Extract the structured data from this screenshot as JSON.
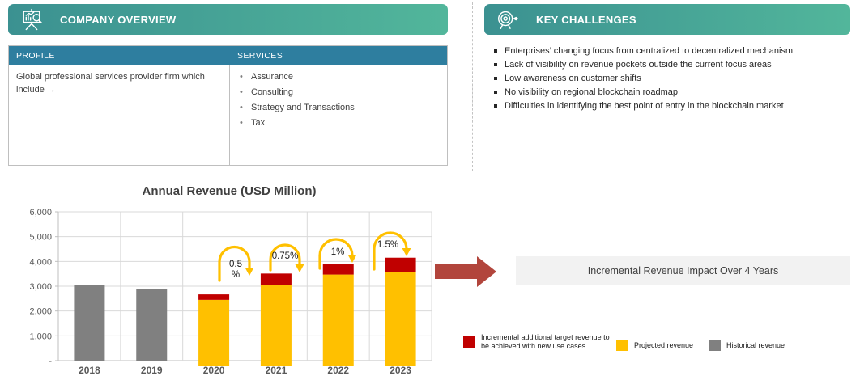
{
  "company_overview": {
    "title": "COMPANY OVERVIEW",
    "table": {
      "headers": [
        "PROFILE",
        "SERVICES"
      ],
      "profile_text": "Global professional services provider firm which include →",
      "services": [
        "Assurance",
        "Consulting",
        "Strategy and Transactions",
        "Tax"
      ]
    }
  },
  "key_challenges": {
    "title": "KEY CHALLENGES",
    "items": [
      "Enterprises’ changing focus from centralized to decentralized mechanism",
      "Lack of visibility on revenue pockets outside the current focus areas",
      "Low awareness on customer shifts",
      "No visibility on regional blockchain roadmap",
      "Difficulties in identifying the best point of entry in the blockchain market"
    ]
  },
  "chart_data": {
    "type": "bar",
    "stacked": true,
    "title": "Annual Revenue (USD Million)",
    "categories": [
      "2018",
      "2019",
      "2020",
      "2021",
      "2022",
      "2023"
    ],
    "series": [
      {
        "name": "Historical revenue",
        "color": "#808080",
        "values": [
          3050,
          2870,
          null,
          null,
          null,
          null
        ]
      },
      {
        "name": "Projected revenue",
        "color": "#FFC000",
        "values": [
          null,
          null,
          2450,
          3060,
          3470,
          3580
        ]
      },
      {
        "name": "Incremental additional target revenue to be achieved with new use cases",
        "color": "#C00000",
        "values": [
          null,
          null,
          220,
          450,
          410,
          570
        ]
      }
    ],
    "growth_labels": [
      "0.5%",
      "0.75%",
      "1%",
      "1.5%"
    ],
    "y_ticks": [
      "6,000",
      "5,000",
      "4,000",
      "3,000",
      "2,000",
      "1,000",
      "-"
    ],
    "ylim": [
      0,
      6000
    ],
    "xlabel": "",
    "ylabel": "",
    "grid": true,
    "legend_position": "bottom-right"
  },
  "impact": {
    "label": "Incremental Revenue Impact Over 4 Years"
  },
  "colors": {
    "banner-teal-1": "#3B9191",
    "banner-teal-2": "#52B69B",
    "table-header-blue": "#2E7E9F",
    "historical-gray": "#808080",
    "projected-yellow": "#FFC000",
    "incremental-red": "#C00000",
    "arrow-red": "#B2453C",
    "impact-box-bg": "#F2F2F2",
    "grid-gray": "#D9D9D9",
    "axis-gray": "#BFBFBF",
    "axis-text-gray": "#595959"
  }
}
